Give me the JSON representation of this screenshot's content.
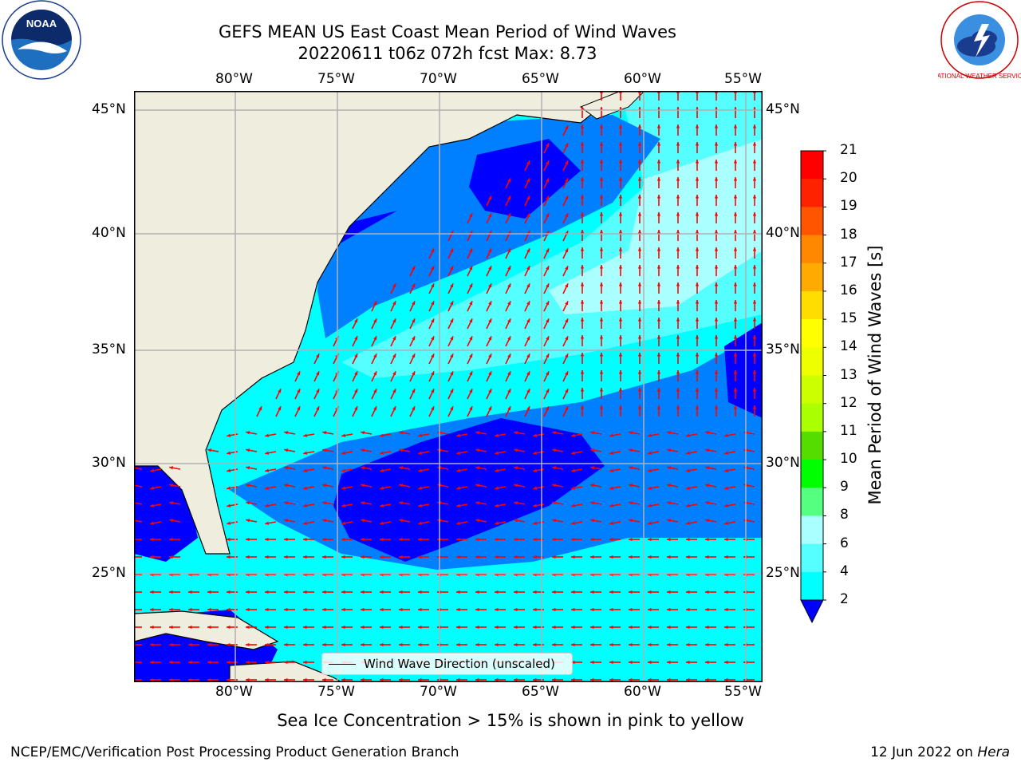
{
  "title": {
    "line1": "GEFS MEAN US East Coast Mean Period of Wind Waves",
    "line2": "20220611 t06z 072h fcst   Max: 8.73"
  },
  "logos": {
    "left": "NOAA",
    "right": "NATIONAL WEATHER SERVICE"
  },
  "map": {
    "lon_labels": [
      "80°W",
      "75°W",
      "70°W",
      "65°W",
      "60°W",
      "55°W"
    ],
    "lat_labels": [
      "45°N",
      "40°N",
      "35°N",
      "30°N",
      "25°N"
    ],
    "legend_label": "Wind Wave Direction (unscaled)",
    "colors": {
      "land": "#efedde",
      "grid": "#b0b0b0",
      "arrow": "#ff0000"
    }
  },
  "colorbar": {
    "label": "Mean Period of Wind Waves [s]",
    "ticks": [
      "2",
      "4",
      "6",
      "8",
      "9",
      "10",
      "11",
      "12",
      "13",
      "14",
      "15",
      "16",
      "17",
      "18",
      "19",
      "20",
      "21"
    ],
    "colors": [
      "#0000ff",
      "#007fff",
      "#00ffff",
      "#55ffff",
      "#aaffff",
      "#55ff7f",
      "#00ff00",
      "#55dd00",
      "#aaff00",
      "#ccff00",
      "#eeff00",
      "#ffff00",
      "#ffdd00",
      "#ffaa00",
      "#ff8800",
      "#ff5500",
      "#ff2200",
      "#ff0000"
    ]
  },
  "footer": {
    "note": "Sea Ice Concentration > 15% is shown in pink to yellow",
    "left": "NCEP/EMC/Verification Post Processing Product Generation Branch",
    "right_prefix": "12 Jun 2022 on ",
    "right_italic": "Hera"
  }
}
